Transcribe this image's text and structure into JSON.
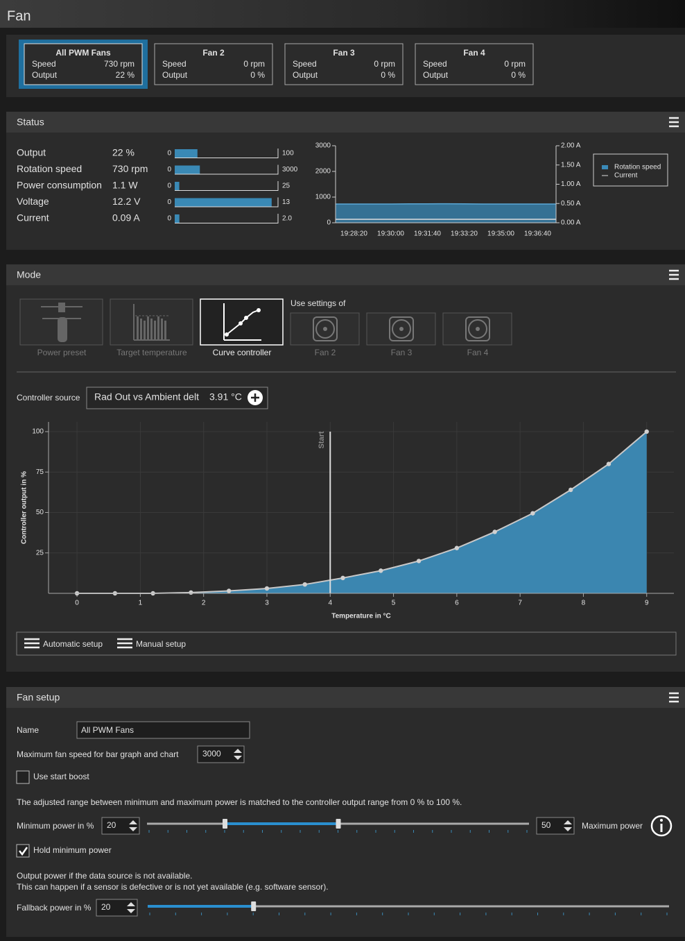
{
  "header": {
    "title": "Fan"
  },
  "fans": [
    {
      "name": "All PWM Fans",
      "speed_label": "Speed",
      "speed": "730 rpm",
      "output_label": "Output",
      "output": "22 %",
      "selected": true
    },
    {
      "name": "Fan 2",
      "speed_label": "Speed",
      "speed": "0 rpm",
      "output_label": "Output",
      "output": "0 %",
      "selected": false
    },
    {
      "name": "Fan 3",
      "speed_label": "Speed",
      "speed": "0 rpm",
      "output_label": "Output",
      "output": "0 %",
      "selected": false
    },
    {
      "name": "Fan 4",
      "speed_label": "Speed",
      "speed": "0 rpm",
      "output_label": "Output",
      "output": "0 %",
      "selected": false
    }
  ],
  "status": {
    "title": "Status",
    "rows": [
      {
        "label": "Output",
        "value_label": "22 %",
        "value": 22,
        "min": 0,
        "max": 100
      },
      {
        "label": "Rotation speed",
        "value_label": "730 rpm",
        "value": 730,
        "min": 0,
        "max": 3000
      },
      {
        "label": "Power consumption",
        "value_label": "1.1 W",
        "value": 1.1,
        "min": 0,
        "max": 25
      },
      {
        "label": "Voltage",
        "value_label": "12.2 V",
        "value": 12.2,
        "min": 0,
        "max": 13
      },
      {
        "label": "Current",
        "value_label": "0.09 A",
        "value": 0.09,
        "min": 0,
        "max": {
          "value": 2,
          "label": "2.0"
        }
      }
    ],
    "chart": {
      "type": "line",
      "xticks": [
        "19:28:20",
        "19:30:00",
        "19:31:40",
        "19:33:20",
        "19:35:00",
        "19:36:40"
      ],
      "ylim": [
        0,
        3000
      ],
      "yticks": [
        0,
        1000,
        2000,
        3000
      ],
      "y2lim": [
        0,
        2
      ],
      "y2ticks": [
        {
          "value": 0,
          "label": "0.00 A"
        },
        {
          "value": 0.5,
          "label": "0.50 A"
        },
        {
          "value": 1,
          "label": "1.00 A"
        },
        {
          "value": 1.5,
          "label": "1.50 A"
        },
        {
          "value": 2,
          "label": "2.00 A"
        }
      ],
      "series": [
        {
          "name": "Rotation speed",
          "color": "#3a8ab8",
          "values": [
            730,
            730,
            730,
            730,
            735,
            735,
            740,
            735,
            730,
            730,
            730,
            730,
            730
          ]
        },
        {
          "name": "Current",
          "color": "#dddddd",
          "axis": "y2",
          "values": [
            0.09,
            0.09,
            0.09,
            0.09,
            0.09,
            0.09,
            0.09,
            0.09,
            0.09,
            0.09,
            0.09,
            0.09,
            0.09
          ]
        }
      ]
    }
  },
  "mode": {
    "title": "Mode",
    "presets": [
      "Power preset",
      "Target temperature",
      "Curve controller"
    ],
    "active_preset": 2,
    "use_settings_label": "Use settings of",
    "use_settings": [
      "Fan 2",
      "Fan 3",
      "Fan 4"
    ],
    "source_label": "Controller source",
    "source": "Rad Out vs Ambient delt",
    "source_value": "3.91 °C",
    "curve": {
      "type": "area",
      "xlabel": "Temperature in °C",
      "ylabel": "Controller output in %",
      "x": [
        0,
        0.6,
        1.2,
        1.8,
        2.4,
        3.0,
        3.6,
        4.2,
        4.8,
        5.4,
        6.0,
        6.6,
        7.2,
        7.8,
        8.4,
        9.0
      ],
      "values": [
        0,
        0,
        0,
        0.5,
        1.5,
        3,
        5.5,
        9.5,
        14,
        20,
        28,
        38,
        49.5,
        64,
        80,
        100
      ],
      "color": "#3b86b0",
      "xlim": [
        -0.45,
        9.43
      ],
      "ylim": [
        0,
        106
      ],
      "xticks": [
        0,
        1,
        2,
        3,
        4,
        5,
        6,
        7,
        8,
        9
      ],
      "yticks": [
        25,
        50,
        75,
        100
      ],
      "grid": true,
      "start": {
        "label": "Start",
        "x": 4
      }
    },
    "buttons": [
      "Automatic setup",
      "Manual setup"
    ]
  },
  "setup": {
    "title": "Fan setup",
    "name_label": "Name",
    "name": "All PWM Fans",
    "max_speed_label": "Maximum fan speed for bar graph and chart",
    "max_speed": 3000,
    "start_boost_label": "Use start boost",
    "start_boost": false,
    "range_note": "The adjusted range between minimum and maximum power is matched to the controller output range from 0 % to 100 %.",
    "min_power_label": "Minimum power in %",
    "min_power": 20,
    "max_power": 50,
    "max_power_label": "Maximum power",
    "slider_lim": [
      0,
      100
    ],
    "hold_min_label": "Hold minimum power",
    "hold_min": true,
    "fallback_note": [
      "Output power if the data source is not available.",
      "This can happen if a sensor is defective or is not yet available (e.g. software sensor)."
    ],
    "fallback_label": "Fallback power in %",
    "fallback_power": 20
  }
}
